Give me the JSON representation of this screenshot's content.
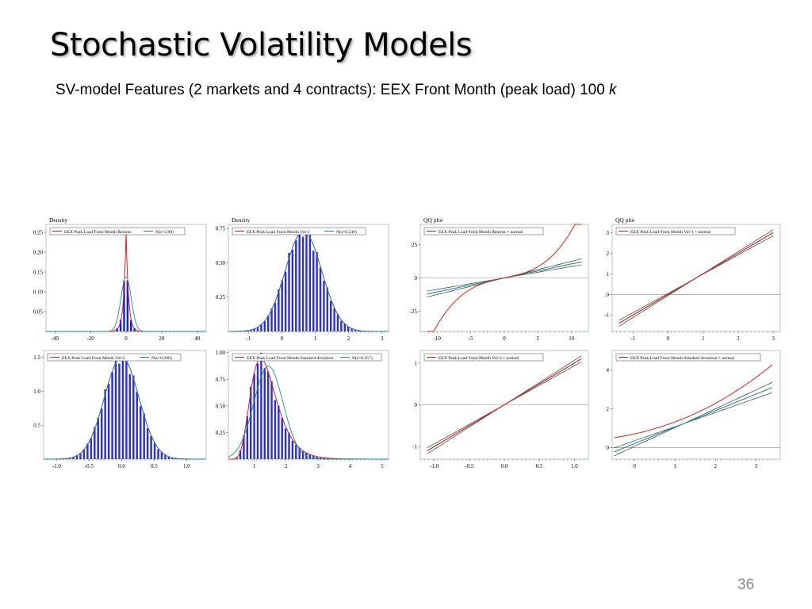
{
  "slide": {
    "title": "Stochastic Volatility Models",
    "subtitle_text": "SV-model Features (2 markets and 4 contracts): EEX Front Month (peak load) 100 ",
    "subtitle_k": "k",
    "page_number": "36"
  },
  "colors": {
    "red": "#e0201c",
    "teal": "#1e8e8e",
    "blue_fill": "#0a1aff",
    "blue_bar": "#2b2fd9",
    "grey": "#888888"
  },
  "chart_data": [
    {
      "type": "bar",
      "title": "Density",
      "legend": [
        "EEX Peak Load Front Month Returns",
        "N(s=2.89)"
      ],
      "x_ticks": [
        -40,
        -20,
        0,
        20,
        40
      ],
      "y_ticks": [
        "0.05",
        "0.10",
        "0.15",
        "0.20",
        "0.25"
      ],
      "xlim": [
        -45,
        45
      ],
      "ylim": [
        0,
        0.27
      ],
      "density": {
        "mean": 0,
        "sd": 2.89,
        "peak": 0.252,
        "scale": 1.4
      },
      "normal": {
        "mean": 0,
        "sd": 2.89
      }
    },
    {
      "type": "bar",
      "title": "Density",
      "legend": [
        "EEX Peak Load Front Month Vol-1",
        "N(s=0.546)"
      ],
      "x_ticks": [
        -1,
        0,
        1,
        2,
        3
      ],
      "y_ticks": [
        "0.25",
        "0.50",
        "0.75"
      ],
      "xlim": [
        -1.6,
        3.2
      ],
      "ylim": [
        0,
        0.78
      ],
      "density": {
        "mean": 0.65,
        "sd": 0.546
      },
      "normal": {
        "mean": 0.65,
        "sd": 0.546
      }
    },
    {
      "type": "line",
      "title": "QQ plot",
      "legend": [
        "EEX Peak Load Front Month Returns × normal"
      ],
      "x_ticks": [
        -10,
        -5,
        0,
        5,
        10
      ],
      "y_ticks": [
        "-25",
        "0",
        "25"
      ],
      "xlim": [
        -12.5,
        12.5
      ],
      "ylim": [
        -40,
        40
      ],
      "fit_slope": 1.05,
      "tail_weight": 0.025,
      "x_range": [
        -11.5,
        11.5
      ]
    },
    {
      "type": "line",
      "title": "QQ plot",
      "legend": [
        "EEX Peak Load Front Month Vol-1 × normal"
      ],
      "x_ticks": [
        -1,
        0,
        1,
        2,
        3
      ],
      "y_ticks": [
        "-1",
        "0",
        "1",
        "2",
        "3"
      ],
      "xlim": [
        -1.6,
        3.2
      ],
      "ylim": [
        -1.8,
        3.4
      ],
      "fit_slope": 1.0,
      "tail_weight": 0,
      "x_range": [
        -1.4,
        3.0
      ]
    },
    {
      "type": "bar",
      "title": "",
      "legend": [
        "EEX Peak Load Front Month Vol-2",
        "N(s=0.266)"
      ],
      "x_ticks": [
        "-1.0",
        "-0.5",
        "0.0",
        "0.5",
        "1.0"
      ],
      "y_tick_values": [
        0.5,
        1.0,
        1.5
      ],
      "y_ticks": [
        "0.5",
        "1.0",
        "1.5"
      ],
      "xlim": [
        -1.2,
        1.3
      ],
      "ylim": [
        0,
        1.6
      ],
      "density": {
        "mean": 0,
        "sd": 0.266
      },
      "normal": {
        "mean": 0,
        "sd": 0.266
      }
    },
    {
      "type": "bar",
      "title": "",
      "legend": [
        "EEX Peak Load Front Month Standard deviation",
        "N(s=0.457)"
      ],
      "x_ticks": [
        1,
        2,
        3,
        4,
        5
      ],
      "y_ticks": [
        "0.25",
        "0.50",
        "0.75",
        "1.00"
      ],
      "xlim": [
        0.2,
        5.2
      ],
      "ylim": [
        0,
        1.02
      ],
      "density": {
        "lognormal": true,
        "mu": 0.3,
        "sigma": 0.33
      },
      "normal": {
        "mean": 1.45,
        "sd": 0.457
      }
    },
    {
      "type": "line",
      "title": "",
      "legend": [
        "EEX Peak Load Front Month Vol-2 × normal"
      ],
      "x_ticks": [
        "-1.0",
        "-0.5",
        "0.0",
        "0.5",
        "1.0"
      ],
      "y_ticks": [
        "-1",
        "0",
        "1"
      ],
      "xlim": [
        -1.2,
        1.2
      ],
      "ylim": [
        -1.3,
        1.3
      ],
      "fit_slope": 1.0,
      "tail_weight": 0,
      "x_range": [
        -1.1,
        1.1
      ]
    },
    {
      "type": "line",
      "title": "",
      "legend": [
        "EEX Peak Load Front Month Standard deviation × normal"
      ],
      "x_ticks": [
        0,
        1,
        2,
        3
      ],
      "y_ticks": [
        "0",
        "2",
        "4"
      ],
      "xlim": [
        -0.55,
        3.6
      ],
      "ylim": [
        -0.6,
        5.0
      ],
      "fit_slope": 1.0,
      "curved": true,
      "x_range": [
        -0.5,
        3.4
      ]
    }
  ]
}
